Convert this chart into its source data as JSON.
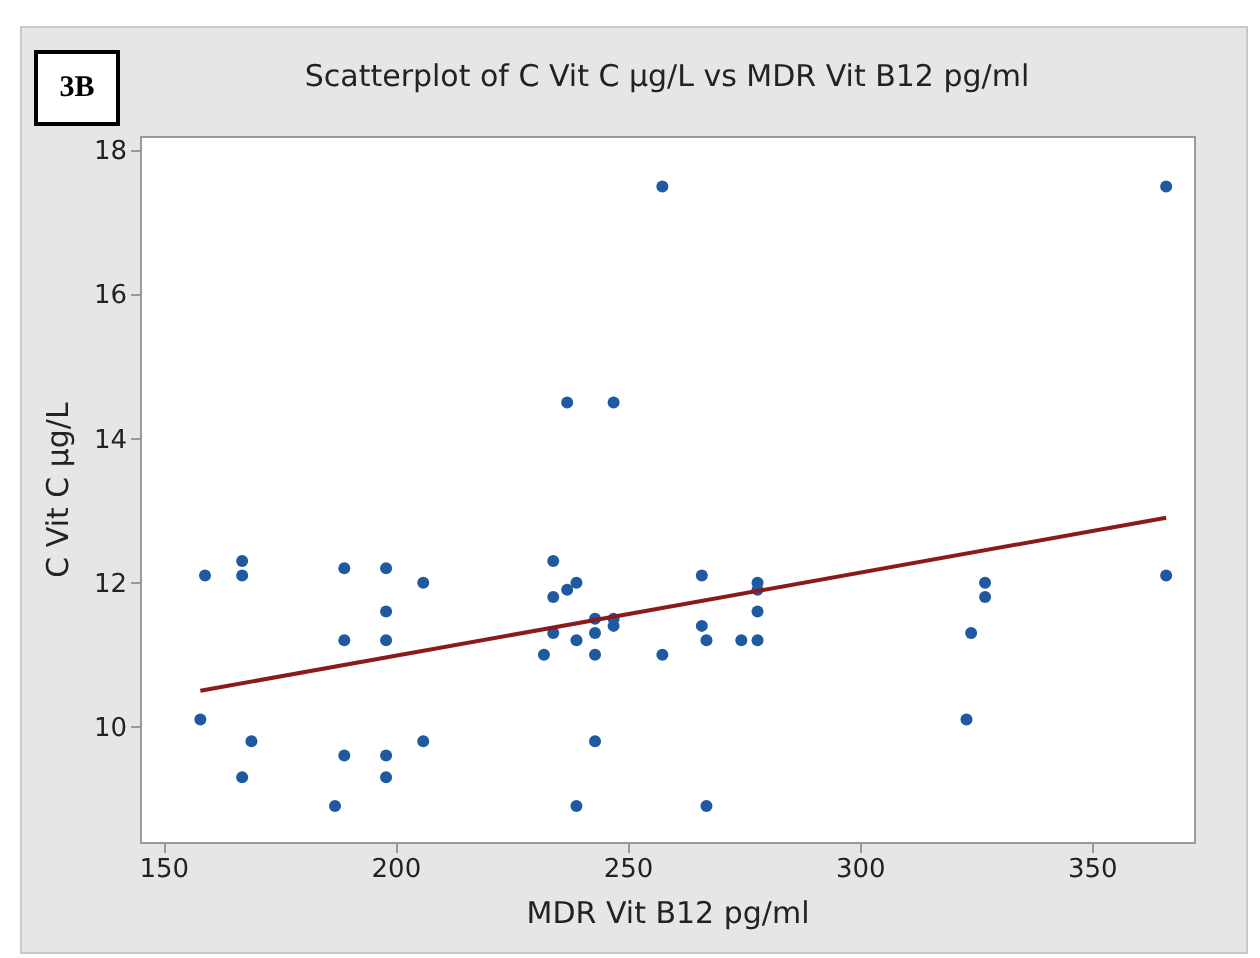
{
  "chart_data": {
    "type": "scatter",
    "title": "Scatterplot of C Vit C µg/L vs MDR Vit B12 pg/ml",
    "xlabel": "MDR Vit B12 pg/ml",
    "ylabel": "C Vit C µg/L",
    "annotations": [
      "3B"
    ],
    "xlim": [
      145,
      372
    ],
    "ylim": [
      8.4,
      18.2
    ],
    "xticks": [
      150,
      200,
      250,
      300,
      350
    ],
    "yticks": [
      10,
      12,
      14,
      16,
      18
    ],
    "grid": false,
    "series": [
      {
        "color": "#1f5aa0",
        "marker": "circle",
        "x": [
          159,
          167,
          167,
          189,
          198,
          206,
          198,
          189,
          198,
          158,
          169,
          189,
          198,
          206,
          167,
          198,
          187,
          257.5,
          237,
          247,
          234,
          234,
          237,
          239,
          243,
          247,
          247,
          234,
          243,
          232,
          239,
          243,
          257.5,
          266,
          266,
          267,
          274.5,
          278,
          278,
          278,
          278,
          243,
          239,
          267,
          366,
          366,
          327,
          327,
          324,
          323
        ],
        "values": [
          12.1,
          12.3,
          12.1,
          12.2,
          12.2,
          12.0,
          11.6,
          11.2,
          11.2,
          10.1,
          9.8,
          9.6,
          9.6,
          9.8,
          9.3,
          9.3,
          8.9,
          17.5,
          14.5,
          14.5,
          12.3,
          11.8,
          11.9,
          12.0,
          11.5,
          11.5,
          11.4,
          11.3,
          11.3,
          11.0,
          11.2,
          11.0,
          11.0,
          12.1,
          11.4,
          11.2,
          11.2,
          12.0,
          11.9,
          11.6,
          11.2,
          9.8,
          8.9,
          8.9,
          17.5,
          12.1,
          12.0,
          11.8,
          11.3,
          10.1
        ]
      },
      {
        "type": "line",
        "color": "#8b1a1a",
        "x": [
          158,
          366
        ],
        "values": [
          10.5,
          12.9
        ],
        "line_style": "solid"
      }
    ]
  }
}
